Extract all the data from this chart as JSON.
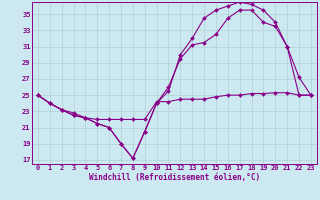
{
  "xlabel": "Windchill (Refroidissement éolien,°C)",
  "background_color": "#cce8f0",
  "line_color": "#880088",
  "xlim": [
    -0.5,
    23.5
  ],
  "ylim": [
    16.5,
    36.5
  ],
  "xticks": [
    0,
    1,
    2,
    3,
    4,
    5,
    6,
    7,
    8,
    9,
    10,
    11,
    12,
    13,
    14,
    15,
    16,
    17,
    18,
    19,
    20,
    21,
    22,
    23
  ],
  "yticks": [
    17,
    19,
    21,
    23,
    25,
    27,
    29,
    31,
    33,
    35
  ],
  "line1_x": [
    0,
    1,
    2,
    3,
    4,
    5,
    6,
    7,
    8,
    9,
    10,
    11,
    12,
    13,
    14,
    15,
    16,
    17,
    18,
    19,
    20,
    21,
    22,
    23
  ],
  "line1_y": [
    25.0,
    24.0,
    23.2,
    22.8,
    22.2,
    22.0,
    22.0,
    22.0,
    22.0,
    22.0,
    24.2,
    24.2,
    24.5,
    24.5,
    24.5,
    24.8,
    25.0,
    25.0,
    25.2,
    25.2,
    25.3,
    25.3,
    25.0,
    25.0
  ],
  "line2_x": [
    0,
    1,
    2,
    3,
    4,
    5,
    6,
    7,
    8,
    9,
    10,
    11,
    12,
    13,
    14,
    15,
    16,
    17,
    18,
    19,
    20,
    21,
    22,
    23
  ],
  "line2_y": [
    25.0,
    24.0,
    23.2,
    22.5,
    22.2,
    21.5,
    21.0,
    19.0,
    17.2,
    20.5,
    24.0,
    26.0,
    29.5,
    31.2,
    31.5,
    32.5,
    34.5,
    35.5,
    35.5,
    34.0,
    33.5,
    31.0,
    27.2,
    25.0
  ],
  "line3_x": [
    0,
    1,
    2,
    3,
    4,
    5,
    6,
    7,
    8,
    9,
    10,
    11,
    12,
    13,
    14,
    15,
    16,
    17,
    18,
    19,
    20,
    21,
    22,
    23
  ],
  "line3_y": [
    25.0,
    24.0,
    23.2,
    22.5,
    22.2,
    21.5,
    21.0,
    19.0,
    17.2,
    20.5,
    24.0,
    25.5,
    30.0,
    32.0,
    34.5,
    35.5,
    36.0,
    36.5,
    36.2,
    35.5,
    34.0,
    31.0,
    25.0,
    25.0
  ],
  "grid_color": "#aacccc",
  "marker": "D",
  "markersize": 2.0,
  "linewidth": 0.8,
  "tick_fontsize": 5.0,
  "xlabel_fontsize": 5.5
}
